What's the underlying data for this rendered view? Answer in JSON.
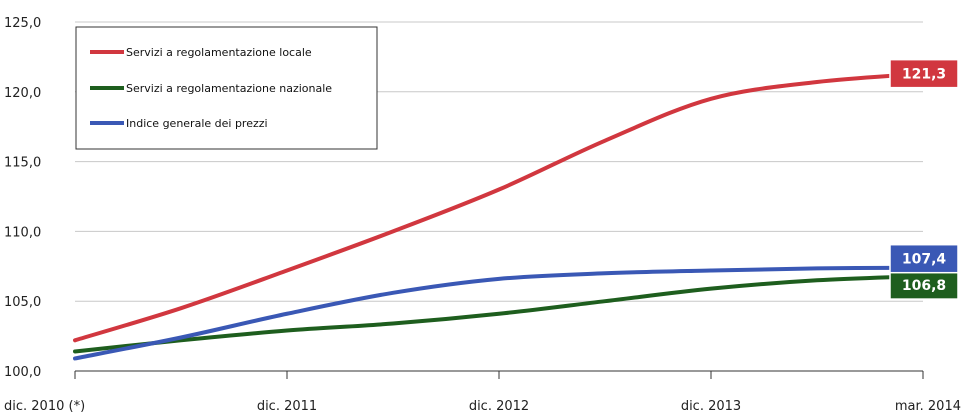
{
  "chart_data": {
    "type": "line",
    "title": "",
    "xlabel": "",
    "ylabel": "",
    "categories": [
      "dic. 2010 (*)",
      "dic. 2011",
      "dic. 2012",
      "dic. 2013",
      "mar. 2014"
    ],
    "x_positions": [
      0,
      1,
      2,
      3,
      4
    ],
    "ylim": [
      100,
      125
    ],
    "y_ticks": [
      100,
      105,
      110,
      115,
      120,
      125
    ],
    "y_tick_labels": [
      "100,0",
      "105,0",
      "110,0",
      "115,0",
      "120,0",
      "125,0"
    ],
    "grid": "horizontal",
    "legend_position": "top-left",
    "series": [
      {
        "name": "Servizi a regolamentazione locale",
        "color": "#d1373f",
        "end_label": "121,3",
        "points": [
          [
            0,
            102.2
          ],
          [
            0.5,
            104.5
          ],
          [
            1,
            107.2
          ],
          [
            1.5,
            110.0
          ],
          [
            2,
            113.0
          ],
          [
            2.5,
            116.5
          ],
          [
            3,
            119.5
          ],
          [
            3.5,
            120.7
          ],
          [
            4,
            121.3
          ]
        ]
      },
      {
        "name": "Servizi a regolamentazione nazionale",
        "color": "#1e5e1e",
        "end_label": "106,8",
        "points": [
          [
            0,
            101.4
          ],
          [
            0.5,
            102.2
          ],
          [
            1,
            102.9
          ],
          [
            1.5,
            103.4
          ],
          [
            2,
            104.1
          ],
          [
            2.5,
            105.0
          ],
          [
            3,
            105.9
          ],
          [
            3.5,
            106.5
          ],
          [
            4,
            106.8
          ]
        ]
      },
      {
        "name": "Indice generale dei prezzi",
        "color": "#3a58b5",
        "end_label": "107,4",
        "points": [
          [
            0,
            100.9
          ],
          [
            0.5,
            102.4
          ],
          [
            1,
            104.1
          ],
          [
            1.5,
            105.6
          ],
          [
            2,
            106.6
          ],
          [
            2.5,
            107.0
          ],
          [
            3,
            107.2
          ],
          [
            3.5,
            107.35
          ],
          [
            4,
            107.4
          ]
        ]
      }
    ]
  }
}
